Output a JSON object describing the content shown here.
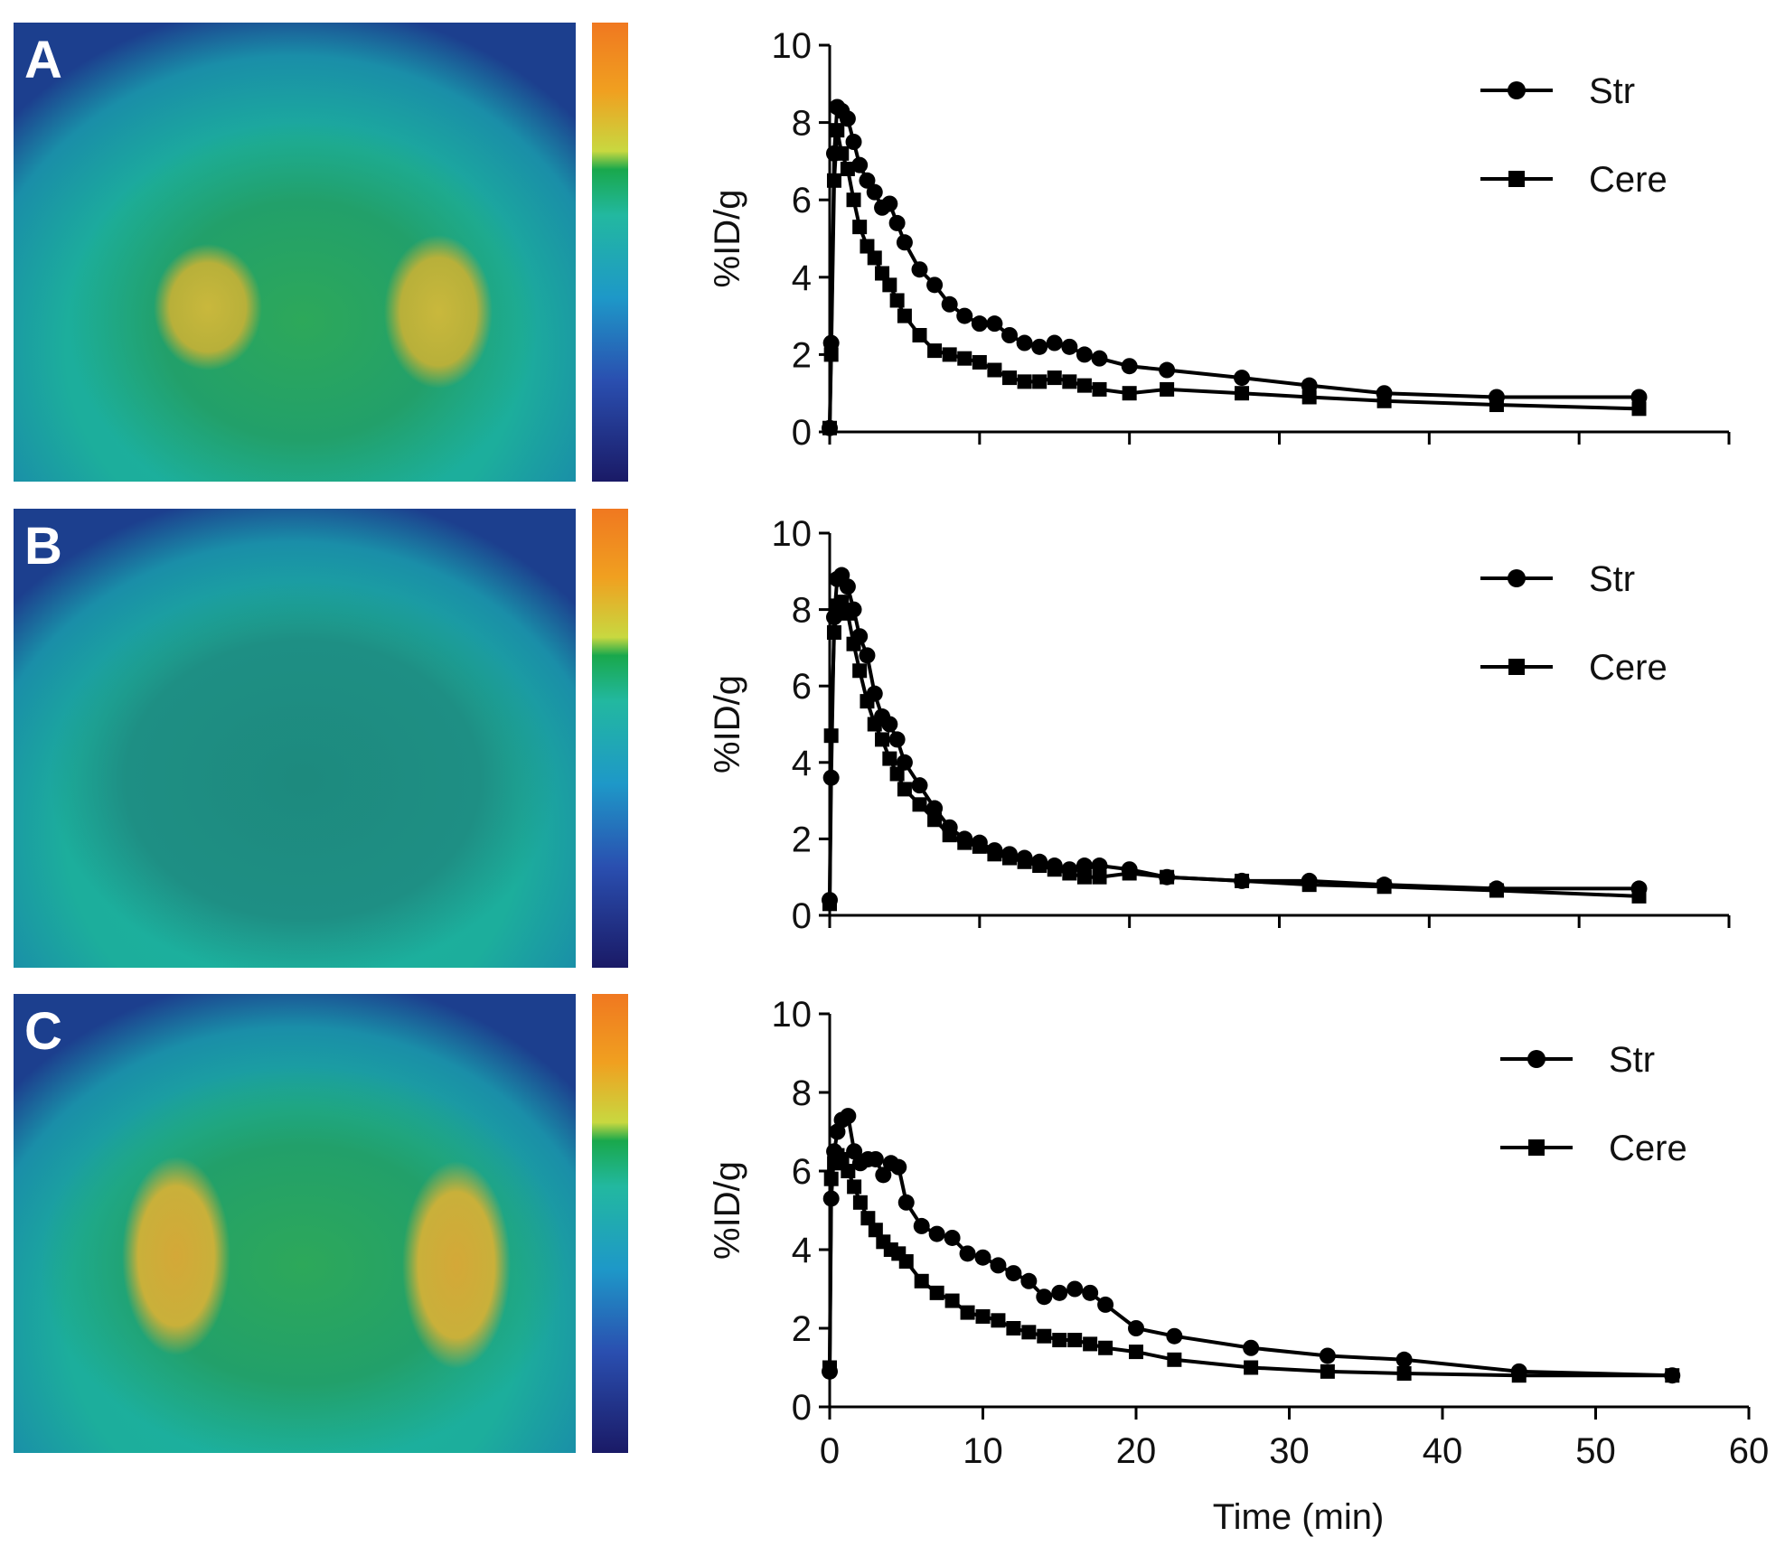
{
  "panels": [
    {
      "letter": "A"
    },
    {
      "letter": "B"
    },
    {
      "letter": "C"
    }
  ],
  "colors": {
    "series": "#000000",
    "colorbar_stops": [
      "#1a1a66",
      "#2a4fb0",
      "#1e98c8",
      "#22b8a0",
      "#19a84c",
      "#c8d840",
      "#f0a020",
      "#f07820"
    ]
  },
  "chart_data": [
    {
      "type": "line",
      "panel": "A",
      "title": "",
      "xlabel": "",
      "ylabel": "%ID/g",
      "xlim": [
        0,
        60
      ],
      "ylim": [
        0,
        10
      ],
      "xticks": [],
      "yticks": [
        "0",
        "2",
        "4",
        "6",
        "8",
        "10"
      ],
      "series": [
        {
          "name": "Str",
          "marker": "circle",
          "x": [
            0,
            0.1,
            0.3,
            0.5,
            0.8,
            1.2,
            1.6,
            2,
            2.5,
            3,
            3.5,
            4,
            4.5,
            5,
            6,
            7,
            8,
            9,
            10,
            11,
            12,
            13,
            14,
            15,
            16,
            17,
            18,
            20,
            22.5,
            27.5,
            32,
            37,
            44.5,
            54
          ],
          "y": [
            0.1,
            2.3,
            7.2,
            8.4,
            8.3,
            8.1,
            7.5,
            6.9,
            6.5,
            6.2,
            5.8,
            5.9,
            5.4,
            4.9,
            4.2,
            3.8,
            3.3,
            3.0,
            2.8,
            2.8,
            2.5,
            2.3,
            2.2,
            2.3,
            2.2,
            2.0,
            1.9,
            1.7,
            1.6,
            1.4,
            1.2,
            1.0,
            0.9,
            0.9
          ]
        },
        {
          "name": "Cere",
          "marker": "square",
          "x": [
            0,
            0.1,
            0.3,
            0.5,
            0.8,
            1.2,
            1.6,
            2,
            2.5,
            3,
            3.5,
            4,
            4.5,
            5,
            6,
            7,
            8,
            9,
            10,
            11,
            12,
            13,
            14,
            15,
            16,
            17,
            18,
            20,
            22.5,
            27.5,
            32,
            37,
            44.5,
            54
          ],
          "y": [
            0.1,
            2.0,
            6.5,
            7.8,
            7.2,
            6.8,
            6.0,
            5.3,
            4.8,
            4.5,
            4.1,
            3.8,
            3.4,
            3.0,
            2.5,
            2.1,
            2.0,
            1.9,
            1.8,
            1.6,
            1.4,
            1.3,
            1.3,
            1.4,
            1.3,
            1.2,
            1.1,
            1.0,
            1.1,
            1.0,
            0.9,
            0.8,
            0.7,
            0.6
          ]
        }
      ],
      "legend": {
        "position": "top-right",
        "entries": [
          "Str",
          "Cere"
        ]
      }
    },
    {
      "type": "line",
      "panel": "B",
      "title": "",
      "xlabel": "",
      "ylabel": "%ID/g",
      "xlim": [
        0,
        60
      ],
      "ylim": [
        0,
        10
      ],
      "xticks": [],
      "yticks": [
        "0",
        "2",
        "4",
        "6",
        "8",
        "10"
      ],
      "series": [
        {
          "name": "Str",
          "marker": "circle",
          "x": [
            0,
            0.1,
            0.3,
            0.5,
            0.8,
            1.2,
            1.6,
            2,
            2.5,
            3,
            3.5,
            4,
            4.5,
            5,
            6,
            7,
            8,
            9,
            10,
            11,
            12,
            13,
            14,
            15,
            16,
            17,
            18,
            20,
            22.5,
            27.5,
            32,
            37,
            44.5,
            54
          ],
          "y": [
            0.4,
            3.6,
            7.8,
            8.8,
            8.9,
            8.6,
            8.0,
            7.3,
            6.8,
            5.8,
            5.2,
            5.0,
            4.6,
            4.0,
            3.4,
            2.8,
            2.3,
            2.0,
            1.9,
            1.7,
            1.6,
            1.5,
            1.4,
            1.3,
            1.2,
            1.3,
            1.3,
            1.2,
            1.0,
            0.9,
            0.9,
            0.8,
            0.7,
            0.7
          ]
        },
        {
          "name": "Cere",
          "marker": "square",
          "x": [
            0,
            0.1,
            0.3,
            0.5,
            0.8,
            1.2,
            1.6,
            2,
            2.5,
            3,
            3.5,
            4,
            4.5,
            5,
            6,
            7,
            8,
            9,
            10,
            11,
            12,
            13,
            14,
            15,
            16,
            17,
            18,
            20,
            22.5,
            27.5,
            32,
            37,
            44.5,
            54
          ],
          "y": [
            0.3,
            4.7,
            7.4,
            8.1,
            8.2,
            7.9,
            7.1,
            6.4,
            5.6,
            5.0,
            4.6,
            4.1,
            3.7,
            3.3,
            2.9,
            2.5,
            2.1,
            1.9,
            1.8,
            1.6,
            1.5,
            1.4,
            1.3,
            1.2,
            1.1,
            1.0,
            1.0,
            1.1,
            1.0,
            0.9,
            0.8,
            0.75,
            0.65,
            0.5
          ]
        }
      ],
      "legend": {
        "position": "top-right",
        "entries": [
          "Str",
          "Cere"
        ]
      }
    },
    {
      "type": "line",
      "panel": "C",
      "title": "",
      "xlabel": "Time (min)",
      "ylabel": "%ID/g",
      "xlim": [
        0,
        60
      ],
      "ylim": [
        0,
        10
      ],
      "xticks": [
        "0",
        "10",
        "20",
        "30",
        "40",
        "50",
        "60"
      ],
      "yticks": [
        "0",
        "2",
        "4",
        "6",
        "8",
        "10"
      ],
      "series": [
        {
          "name": "Str",
          "marker": "circle",
          "x": [
            0,
            0.1,
            0.3,
            0.5,
            0.8,
            1.2,
            1.6,
            2,
            2.5,
            3,
            3.5,
            4,
            4.5,
            5,
            6,
            7,
            8,
            9,
            10,
            11,
            12,
            13,
            14,
            15,
            16,
            17,
            18,
            20,
            22.5,
            27.5,
            32.5,
            37.5,
            45,
            55
          ],
          "y": [
            0.9,
            5.3,
            6.5,
            7.0,
            7.3,
            7.4,
            6.5,
            6.2,
            6.3,
            6.3,
            5.9,
            6.2,
            6.1,
            5.2,
            4.6,
            4.4,
            4.3,
            3.9,
            3.8,
            3.6,
            3.4,
            3.2,
            2.8,
            2.9,
            3.0,
            2.9,
            2.6,
            2.0,
            1.8,
            1.5,
            1.3,
            1.2,
            0.9,
            0.8
          ]
        },
        {
          "name": "Cere",
          "marker": "square",
          "x": [
            0,
            0.1,
            0.3,
            0.5,
            0.8,
            1.2,
            1.6,
            2,
            2.5,
            3,
            3.5,
            4,
            4.5,
            5,
            6,
            7,
            8,
            9,
            10,
            11,
            12,
            13,
            14,
            15,
            16,
            17,
            18,
            20,
            22.5,
            27.5,
            32.5,
            37.5,
            45,
            55
          ],
          "y": [
            1.0,
            5.8,
            6.2,
            6.4,
            6.3,
            6.0,
            5.6,
            5.2,
            4.8,
            4.5,
            4.2,
            4.0,
            3.9,
            3.7,
            3.2,
            2.9,
            2.7,
            2.4,
            2.3,
            2.2,
            2.0,
            1.9,
            1.8,
            1.7,
            1.7,
            1.6,
            1.5,
            1.4,
            1.2,
            1.0,
            0.9,
            0.85,
            0.8,
            0.8
          ]
        }
      ],
      "legend": {
        "position": "top-right",
        "entries": [
          "Str",
          "Cere"
        ]
      }
    }
  ]
}
